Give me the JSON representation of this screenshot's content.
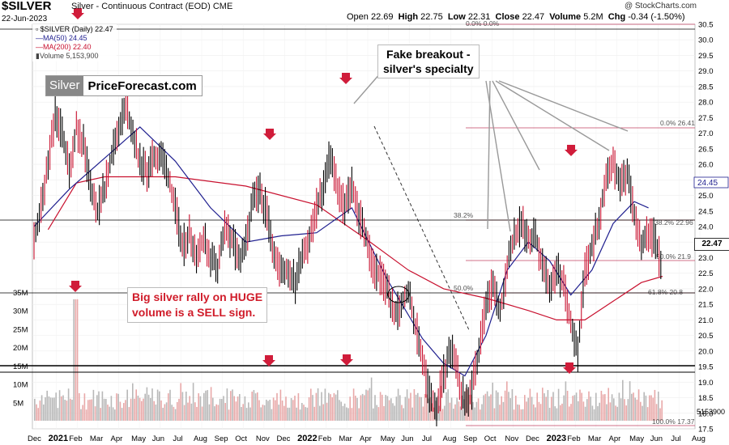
{
  "header": {
    "title": "$SILVER",
    "subtitle": "Silver - Continuous Contract (EOD)  CME",
    "date": "22-Jun-2023",
    "credit": "@ StockCharts.com",
    "open_label": "Open",
    "open": "22.69",
    "high_label": "High",
    "high": "22.75",
    "low_label": "Low",
    "low": "22.31",
    "close_label": "Close",
    "close": "22.47",
    "volume_label": "Volume",
    "volume": "5.2M",
    "chg_label": "Chg",
    "chg": "-0.34 (-1.50%)"
  },
  "legend": {
    "price": "$SILVER (Daily) 22.47",
    "ma50": "MA(50) 24.45",
    "ma200": "MA(200) 22.40",
    "volume": "Volume 5,153,900"
  },
  "logo": {
    "part1": "Silver",
    "part2": "PriceForecast.com"
  },
  "annotations": {
    "fake_breakout_line1": "Fake breakout -",
    "fake_breakout_line2": "silver's specialty",
    "volume_note_line1": "Big silver rally on HUGE",
    "volume_note_line2": "volume is a SELL sign."
  },
  "colors": {
    "ma50": "#1f1f8f",
    "ma200": "#c8102e",
    "up": "#000000",
    "down": "#c8102e",
    "marker": "#d01c3a",
    "fib": "#c04060",
    "volume": "#e8a8a8"
  },
  "chart_data": {
    "type": "ohlc",
    "ylim": [
      17.5,
      30.5
    ],
    "y_ticks": [
      17.5,
      18.0,
      18.5,
      19.0,
      19.5,
      20.0,
      20.5,
      21.0,
      21.5,
      22.0,
      22.5,
      23.0,
      23.5,
      24.0,
      24.5,
      25.0,
      25.5,
      26.0,
      26.5,
      27.0,
      27.5,
      28.0,
      28.5,
      29.0,
      29.5,
      30.0,
      30.5
    ],
    "volume_ticks": [
      "35M",
      "30M",
      "25M",
      "20M",
      "15M",
      "10M",
      "5M"
    ],
    "volume_tick_values": [
      35,
      30,
      25,
      20,
      15,
      10,
      5
    ],
    "volume_last_label": "5153900",
    "x_labels": [
      "Dec",
      "2021",
      "Feb",
      "Mar",
      "Apr",
      "May",
      "Jun",
      "Jul",
      "Aug",
      "Sep",
      "Oct",
      "Nov",
      "Dec",
      "2022",
      "Feb",
      "Mar",
      "Apr",
      "May",
      "Jun",
      "Jul",
      "Aug",
      "Sep",
      "Oct",
      "Nov",
      "Dec",
      "2023",
      "Feb",
      "Mar",
      "Apr",
      "May",
      "Jun",
      "Jul",
      "Aug"
    ],
    "last_price_label": "22.47",
    "ma50_label": "24.45",
    "fib_labels": [
      "0.0% 0.0%",
      "0.0% 26.41",
      "38.2%",
      "38.2% 22.96",
      "50.0%",
      "50.0% 21.9",
      "61.8% 20.8",
      "100.0% 17.37"
    ],
    "price_path": [
      [
        0,
        23.6
      ],
      [
        1,
        24.6
      ],
      [
        2,
        26.0
      ],
      [
        3,
        27.6
      ],
      [
        4,
        27.0
      ],
      [
        5,
        25.8
      ],
      [
        6,
        27.2
      ],
      [
        7,
        26.6
      ],
      [
        8,
        25.3
      ],
      [
        9,
        24.5
      ],
      [
        10,
        25.2
      ],
      [
        11,
        26.3
      ],
      [
        12,
        27.2
      ],
      [
        13,
        27.8
      ],
      [
        14,
        27.0
      ],
      [
        15,
        26.0
      ],
      [
        16,
        25.8
      ],
      [
        17,
        26.2
      ],
      [
        18,
        26.3
      ],
      [
        19,
        25.6
      ],
      [
        20,
        24.6
      ],
      [
        21,
        23.3
      ],
      [
        22,
        23.8
      ],
      [
        23,
        23.1
      ],
      [
        24,
        23.6
      ],
      [
        25,
        23.0
      ],
      [
        26,
        22.7
      ],
      [
        27,
        23.9
      ],
      [
        28,
        23.6
      ],
      [
        29,
        22.9
      ],
      [
        30,
        23.4
      ],
      [
        31,
        24.8
      ],
      [
        32,
        25.1
      ],
      [
        33,
        24.4
      ],
      [
        34,
        23.2
      ],
      [
        35,
        22.5
      ],
      [
        36,
        22.6
      ],
      [
        37,
        22.2
      ],
      [
        38,
        23.2
      ],
      [
        39,
        23.6
      ],
      [
        40,
        24.6
      ],
      [
        41,
        25.3
      ],
      [
        42,
        26.3
      ],
      [
        43,
        25.2
      ],
      [
        44,
        24.6
      ],
      [
        45,
        25.4
      ],
      [
        46,
        24.4
      ],
      [
        47,
        23.7
      ],
      [
        48,
        22.7
      ],
      [
        49,
        22.4
      ],
      [
        50,
        22.1
      ],
      [
        51,
        21.1
      ],
      [
        52,
        21.5
      ],
      [
        53,
        21.9
      ],
      [
        54,
        20.8
      ],
      [
        55,
        19.8
      ],
      [
        56,
        18.6
      ],
      [
        57,
        18.2
      ],
      [
        58,
        19.2
      ],
      [
        59,
        20.1
      ],
      [
        60,
        19.2
      ],
      [
        61,
        18.3
      ],
      [
        62,
        18.7
      ],
      [
        63,
        20.0
      ],
      [
        64,
        21.5
      ],
      [
        65,
        22.1
      ],
      [
        66,
        21.2
      ],
      [
        67,
        22.8
      ],
      [
        68,
        23.7
      ],
      [
        69,
        24.1
      ],
      [
        70,
        23.6
      ],
      [
        71,
        23.7
      ],
      [
        72,
        22.7
      ],
      [
        73,
        22.0
      ],
      [
        74,
        22.7
      ],
      [
        75,
        22.1
      ],
      [
        76,
        21.0
      ],
      [
        77,
        20.0
      ],
      [
        78,
        22.6
      ],
      [
        79,
        23.3
      ],
      [
        80,
        24.2
      ],
      [
        81,
        25.7
      ],
      [
        82,
        26.1
      ],
      [
        83,
        25.2
      ],
      [
        84,
        25.8
      ],
      [
        85,
        24.4
      ],
      [
        86,
        23.4
      ],
      [
        87,
        23.8
      ],
      [
        88,
        23.6
      ],
      [
        89,
        22.5
      ]
    ],
    "path_x_range": [
      0,
      89
    ],
    "ma50_path": [
      [
        0,
        24
      ],
      [
        5,
        25.2
      ],
      [
        10,
        26.2
      ],
      [
        15,
        27.2
      ],
      [
        20,
        26.1
      ],
      [
        25,
        24.6
      ],
      [
        30,
        23.5
      ],
      [
        35,
        23.7
      ],
      [
        40,
        23.8
      ],
      [
        45,
        24.6
      ],
      [
        50,
        22.3
      ],
      [
        55,
        20.4
      ],
      [
        58,
        19.6
      ],
      [
        61,
        19.2
      ],
      [
        64,
        20.5
      ],
      [
        67,
        22.6
      ],
      [
        70,
        23.5
      ],
      [
        73,
        22.9
      ],
      [
        76,
        21.8
      ],
      [
        79,
        22.6
      ],
      [
        82,
        24.1
      ],
      [
        85,
        24.8
      ],
      [
        87,
        24.6
      ]
    ],
    "ma200_path": [
      [
        2,
        23.9
      ],
      [
        6,
        25.4
      ],
      [
        10,
        25.6
      ],
      [
        20,
        25.6
      ],
      [
        30,
        25.3
      ],
      [
        40,
        24.7
      ],
      [
        47,
        23.6
      ],
      [
        53,
        22.6
      ],
      [
        58,
        22.0
      ],
      [
        64,
        21.7
      ],
      [
        70,
        21.3
      ],
      [
        74,
        21.0
      ],
      [
        78,
        21.0
      ],
      [
        82,
        21.6
      ],
      [
        86,
        22.2
      ],
      [
        89,
        22.4
      ]
    ]
  }
}
